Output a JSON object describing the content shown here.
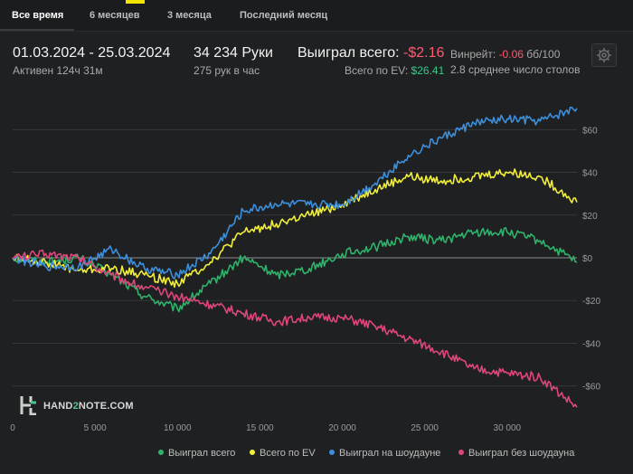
{
  "tabs": [
    {
      "label": "Все время",
      "active": true
    },
    {
      "label": "6 месяцев",
      "active": false
    },
    {
      "label": "3 месяца",
      "active": false
    },
    {
      "label": "Последний месяц",
      "active": false
    }
  ],
  "stats": {
    "date_range": "01.03.2024 - 25.03.2024",
    "active_time": "Активен 124ч 31м",
    "hands": "34 234 Руки",
    "hands_per_hour": "275 рук в час",
    "won_total_label": "Выиграл всего:",
    "won_total_value": "-$2.16",
    "ev_total_label": "Всего по EV:",
    "ev_total_value": "$26.41",
    "winrate_label": "Винрейт:",
    "winrate_value": "-0.06",
    "winrate_unit": "бб/100",
    "avg_tables": "2.8 среднее число столов"
  },
  "logo": {
    "prefix": "HAND",
    "accent": "2",
    "suffix": "NOTE.COM"
  },
  "colors": {
    "green": "#2fb36b",
    "yellow": "#f0ee3a",
    "blue": "#3c8fdc",
    "pink": "#e0457a"
  },
  "chart_data": {
    "type": "line",
    "x_ticks": [
      "0",
      "5 000",
      "10 000",
      "15 000",
      "20 000",
      "25 000",
      "30 000"
    ],
    "x_tick_values": [
      0,
      5000,
      10000,
      15000,
      20000,
      25000,
      30000
    ],
    "y_ticks": [
      "$60",
      "$40",
      "$20",
      "$0",
      "-$20",
      "-$40",
      "-$60"
    ],
    "y_tick_values": [
      60,
      40,
      20,
      0,
      -20,
      -40,
      -60
    ],
    "xlim": [
      0,
      34234
    ],
    "ylim": [
      -72,
      72
    ],
    "x": [
      0,
      2000,
      4000,
      6000,
      8000,
      10000,
      12000,
      14000,
      16000,
      18000,
      20000,
      22000,
      24000,
      26000,
      28000,
      30000,
      32000,
      34234
    ],
    "series": [
      {
        "name": "Выиграл всего",
        "color": "#2fb36b",
        "values": [
          0,
          -2,
          0,
          -8,
          -18,
          -24,
          -12,
          0,
          -8,
          -5,
          2,
          5,
          10,
          8,
          12,
          12,
          8,
          -2
        ]
      },
      {
        "name": "Всего по EV",
        "color": "#f0ee3a",
        "values": [
          0,
          -2,
          -6,
          -5,
          -8,
          -12,
          -2,
          12,
          16,
          20,
          25,
          32,
          38,
          36,
          38,
          40,
          38,
          26
        ]
      },
      {
        "name": "Выиграл на шоудауне",
        "color": "#3c8fdc",
        "values": [
          0,
          -4,
          -4,
          4,
          -5,
          -8,
          2,
          22,
          25,
          25,
          25,
          35,
          48,
          56,
          63,
          65,
          64,
          70
        ]
      },
      {
        "name": "Выиграл без шоудауна",
        "color": "#e0457a",
        "values": [
          0,
          2,
          0,
          -8,
          -14,
          -18,
          -22,
          -26,
          -30,
          -28,
          -28,
          -32,
          -38,
          -44,
          -52,
          -54,
          -56,
          -70
        ]
      }
    ],
    "grid": true,
    "legend_position": "bottom"
  }
}
